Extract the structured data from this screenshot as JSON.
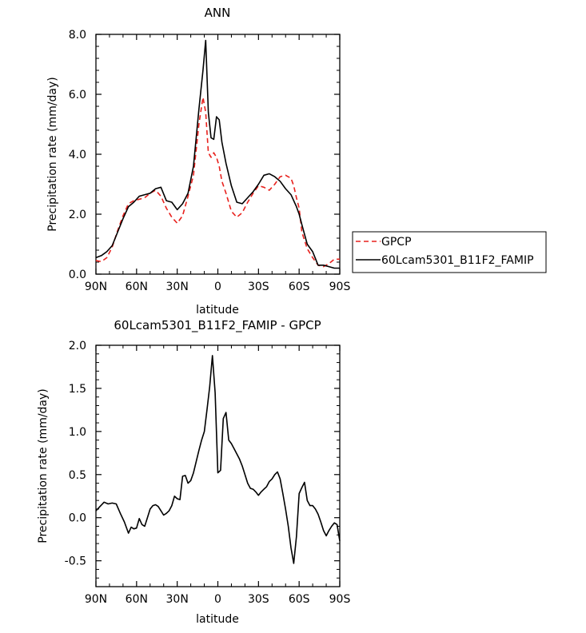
{
  "chart_data": [
    {
      "type": "line",
      "title": "ANN",
      "xlabel": "latitude",
      "ylabel": "Precipitation rate (mm/day)",
      "xlim": [
        90,
        -90
      ],
      "ylim": [
        0,
        8
      ],
      "x_ticks": [
        {
          "value": 90,
          "label": "90N"
        },
        {
          "value": 60,
          "label": "60N"
        },
        {
          "value": 30,
          "label": "30N"
        },
        {
          "value": 0,
          "label": "0"
        },
        {
          "value": -30,
          "label": "30S"
        },
        {
          "value": -60,
          "label": "60S"
        },
        {
          "value": -90,
          "label": "90S"
        }
      ],
      "y_ticks": [
        "0.0",
        "2.0",
        "4.0",
        "6.0",
        "8.0"
      ],
      "legend_position": "right",
      "series": [
        {
          "name": "GPCP",
          "color": "#e8211d",
          "dash": "dashed",
          "x": [
            90,
            86,
            82,
            78,
            74,
            70,
            66,
            62,
            58,
            54,
            50,
            46,
            42,
            38,
            34,
            30,
            26,
            22,
            18,
            14,
            11,
            9,
            7,
            5,
            3,
            1,
            -1,
            -3,
            -6,
            -10,
            -14,
            -18,
            -22,
            -26,
            -30,
            -34,
            -38,
            -42,
            -46,
            -50,
            -54,
            -56,
            -58,
            -60,
            -62,
            -66,
            -70,
            -74,
            -78,
            -82,
            -86,
            -90
          ],
          "y": [
            0.45,
            0.42,
            0.55,
            0.9,
            1.45,
            1.95,
            2.35,
            2.45,
            2.5,
            2.55,
            2.7,
            2.8,
            2.6,
            2.2,
            1.9,
            1.7,
            1.95,
            2.6,
            3.3,
            5.0,
            5.9,
            5.4,
            4.05,
            3.9,
            4.05,
            3.9,
            3.6,
            3.1,
            2.7,
            2.1,
            1.9,
            2.05,
            2.4,
            2.7,
            2.95,
            2.9,
            2.8,
            3.0,
            3.25,
            3.3,
            3.2,
            2.95,
            2.55,
            2.2,
            1.4,
            0.85,
            0.55,
            0.3,
            0.25,
            0.35,
            0.5,
            0.5
          ]
        },
        {
          "name": "60Lcam5301_B11F2_FAMIP",
          "color": "#000000",
          "dash": "solid",
          "x": [
            90,
            86,
            82,
            78,
            74,
            70,
            66,
            62,
            58,
            54,
            50,
            46,
            42,
            38,
            34,
            30,
            26,
            22,
            18,
            14,
            11,
            9,
            7,
            5,
            3,
            1,
            -1,
            -3,
            -6,
            -10,
            -14,
            -18,
            -22,
            -26,
            -30,
            -34,
            -38,
            -42,
            -46,
            -50,
            -54,
            -56,
            -58,
            -60,
            -62,
            -66,
            -70,
            -74,
            -78,
            -82,
            -86,
            -90
          ],
          "y": [
            0.55,
            0.62,
            0.75,
            0.95,
            1.4,
            1.85,
            2.25,
            2.4,
            2.6,
            2.65,
            2.7,
            2.85,
            2.9,
            2.45,
            2.4,
            2.15,
            2.35,
            2.7,
            3.6,
            5.5,
            6.8,
            7.8,
            5.4,
            4.55,
            4.5,
            5.25,
            5.15,
            4.4,
            3.7,
            2.95,
            2.4,
            2.35,
            2.55,
            2.75,
            3.0,
            3.3,
            3.35,
            3.25,
            3.1,
            2.85,
            2.65,
            2.45,
            2.25,
            2.0,
            1.65,
            1.0,
            0.75,
            0.3,
            0.3,
            0.25,
            0.2,
            0.2
          ]
        }
      ]
    },
    {
      "type": "line",
      "title": "60Lcam5301_B11F2_FAMIP - GPCP",
      "xlabel": "latitude",
      "ylabel": "Precipitation rate (mm/day)",
      "xlim": [
        90,
        -90
      ],
      "ylim": [
        -0.8,
        2.0
      ],
      "x_ticks": [
        {
          "value": 90,
          "label": "90N"
        },
        {
          "value": 60,
          "label": "60N"
        },
        {
          "value": 30,
          "label": "30N"
        },
        {
          "value": 0,
          "label": "0"
        },
        {
          "value": -30,
          "label": "30S"
        },
        {
          "value": -60,
          "label": "60S"
        },
        {
          "value": -90,
          "label": "90S"
        }
      ],
      "y_ticks": [
        "-0.5",
        "0.0",
        "0.5",
        "1.0",
        "1.5",
        "2.0"
      ],
      "series": [
        {
          "name": "",
          "color": "#000000",
          "dash": "solid",
          "x": [
            90,
            87,
            84,
            81,
            78,
            75,
            72,
            69,
            66,
            64,
            62,
            60,
            58,
            56,
            54,
            52,
            50,
            48,
            46,
            44,
            42,
            40,
            38,
            36,
            34,
            32,
            30,
            28,
            26,
            24,
            22,
            20,
            18,
            16,
            14,
            12,
            10,
            8,
            6,
            4,
            2,
            0,
            -2,
            -4,
            -6,
            -8,
            -10,
            -12,
            -14,
            -16,
            -18,
            -20,
            -22,
            -24,
            -26,
            -28,
            -30,
            -32,
            -34,
            -36,
            -38,
            -40,
            -42,
            -44,
            -46,
            -48,
            -50,
            -52,
            -54,
            -56,
            -58,
            -60,
            -62,
            -64,
            -66,
            -68,
            -70,
            -72,
            -74,
            -76,
            -78,
            -80,
            -82,
            -84,
            -86,
            -88,
            -90
          ],
          "y": [
            0.08,
            0.13,
            0.18,
            0.16,
            0.17,
            0.16,
            0.05,
            -0.05,
            -0.18,
            -0.11,
            -0.13,
            -0.12,
            -0.01,
            -0.08,
            -0.1,
            0.0,
            0.1,
            0.14,
            0.15,
            0.13,
            0.08,
            0.03,
            0.05,
            0.08,
            0.14,
            0.25,
            0.22,
            0.21,
            0.48,
            0.49,
            0.4,
            0.43,
            0.52,
            0.65,
            0.78,
            0.9,
            1.0,
            1.25,
            1.52,
            1.88,
            1.45,
            0.52,
            0.55,
            1.15,
            1.22,
            0.9,
            0.86,
            0.8,
            0.74,
            0.68,
            0.6,
            0.5,
            0.4,
            0.34,
            0.33,
            0.3,
            0.26,
            0.3,
            0.33,
            0.36,
            0.42,
            0.45,
            0.5,
            0.53,
            0.45,
            0.28,
            0.1,
            -0.1,
            -0.35,
            -0.53,
            -0.22,
            0.28,
            0.35,
            0.41,
            0.2,
            0.14,
            0.14,
            0.1,
            0.04,
            -0.05,
            -0.15,
            -0.21,
            -0.15,
            -0.1,
            -0.06,
            -0.08,
            -0.27
          ]
        }
      ]
    }
  ]
}
